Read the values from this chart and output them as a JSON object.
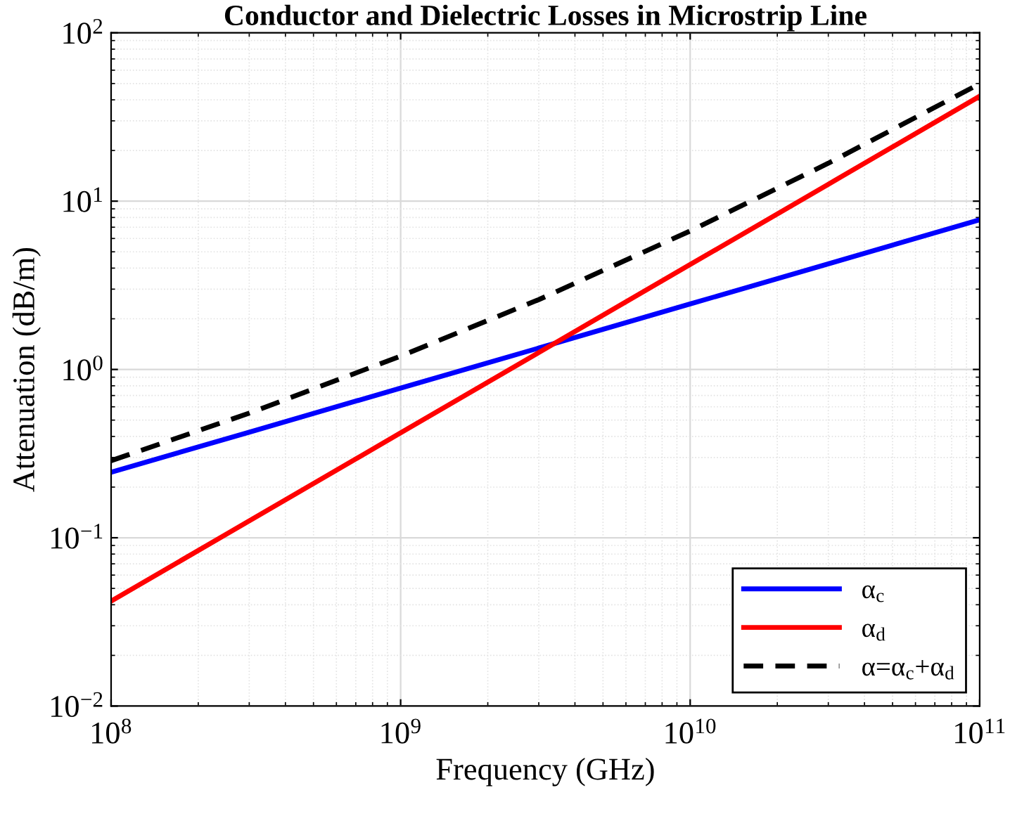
{
  "chart_data": {
    "type": "line",
    "title": "Conductor and Dielectric Losses in Microstrip Line",
    "xlabel": "Frequency (GHz)",
    "ylabel": "Attenuation (dB/m)",
    "x": [
      100000000.0,
      300000000.0,
      1000000000.0,
      3000000000.0,
      10000000000.0,
      30000000000.0,
      100000000000.0
    ],
    "series": [
      {
        "name": "α$_{c}$",
        "color": "#0000ff",
        "values": [
          0.245,
          0.424,
          0.775,
          1.34,
          2.45,
          4.24,
          7.75
        ]
      },
      {
        "name": "α$_{d}$",
        "color": "#ff0000",
        "values": [
          0.042,
          0.126,
          0.42,
          1.26,
          4.2,
          12.6,
          42
        ]
      },
      {
        "name": "α=α$_{c}$+α$_{d}$",
        "color": "#000000",
        "line_style": "dashed",
        "values": [
          0.287,
          0.55,
          1.2,
          2.6,
          6.65,
          16.8,
          49.8
        ]
      }
    ],
    "log": "xy",
    "xlim": [
      100000000.0,
      100000000000.0
    ],
    "ylim": [
      0.01,
      100
    ],
    "xticks": [
      {
        "value": 100000000.0,
        "label": "10$^{8}$"
      },
      {
        "value": 1000000000.0,
        "label": "10$^{9}$"
      },
      {
        "value": 10000000000.0,
        "label": "10$^{10}$"
      },
      {
        "value": 100000000000.0,
        "label": "10$^{11}$"
      }
    ],
    "yticks": [
      {
        "value": 0.01,
        "label": "10$^{−2}$"
      },
      {
        "value": 0.1,
        "label": "10$^{−1}$"
      },
      {
        "value": 1,
        "label": "10$^{0}$"
      },
      {
        "value": 10,
        "label": "10$^{1}$"
      },
      {
        "value": 100,
        "label": "10$^{2}$"
      }
    ],
    "grid": true,
    "legend": "bottom right",
    "line_style": "solid"
  }
}
